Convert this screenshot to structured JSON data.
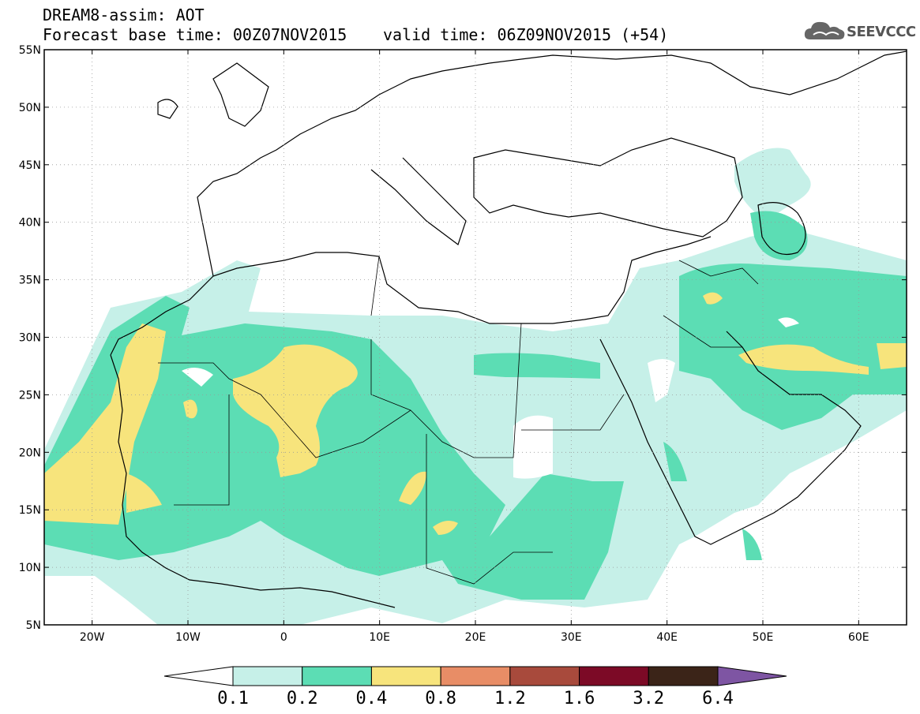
{
  "title": {
    "line1": "DREAM8-assim: AOT",
    "base_time": "Forecast base time: 00Z07NOV2015",
    "valid_time": "valid time: 06Z09NOV2015 (+54)"
  },
  "logo": {
    "text": "SEEVCCC",
    "icon": "cloud-icon"
  },
  "map": {
    "lon_range": [
      -25,
      65
    ],
    "lat_range": [
      5,
      55
    ],
    "lat_ticks": [
      {
        "value": 55,
        "label": "55N"
      },
      {
        "value": 50,
        "label": "50N"
      },
      {
        "value": 45,
        "label": "45N"
      },
      {
        "value": 40,
        "label": "40N"
      },
      {
        "value": 35,
        "label": "35N"
      },
      {
        "value": 30,
        "label": "30N"
      },
      {
        "value": 25,
        "label": "25N"
      },
      {
        "value": 20,
        "label": "20N"
      },
      {
        "value": 15,
        "label": "15N"
      },
      {
        "value": 10,
        "label": "10N"
      },
      {
        "value": 5,
        "label": "5N"
      }
    ],
    "lon_ticks": [
      {
        "value": -20,
        "label": "20W"
      },
      {
        "value": -10,
        "label": "10W"
      },
      {
        "value": 0,
        "label": "0"
      },
      {
        "value": 10,
        "label": "10E"
      },
      {
        "value": 20,
        "label": "20E"
      },
      {
        "value": 30,
        "label": "30E"
      },
      {
        "value": 40,
        "label": "40E"
      },
      {
        "value": 50,
        "label": "50E"
      },
      {
        "value": 60,
        "label": "60E"
      }
    ],
    "grid": true
  },
  "colorbar": {
    "labels": [
      "0.1",
      "0.2",
      "0.4",
      "0.8",
      "1.2",
      "1.6",
      "3.2",
      "6.4"
    ],
    "colors": [
      "#ffffff",
      "#c6f0e8",
      "#5cddb4",
      "#f7e47c",
      "#e88d66",
      "#a84a3c",
      "#7c0a26",
      "#3b2418",
      "#7e55a3"
    ]
  }
}
